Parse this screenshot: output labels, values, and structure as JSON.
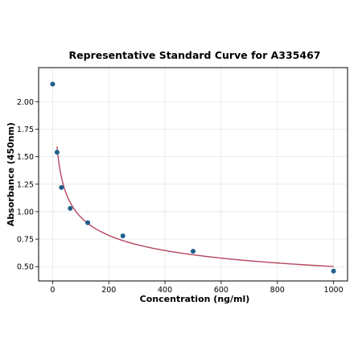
{
  "chart_data": {
    "type": "scatter",
    "title": "Representative Standard Curve for A335467",
    "xlabel": "Concentration (ng/ml)",
    "ylabel": "Absorbance (450nm)",
    "xlim": [
      -50,
      1050
    ],
    "ylim": [
      0.37,
      2.31
    ],
    "x_ticks": [
      0,
      200,
      400,
      600,
      800,
      1000
    ],
    "y_ticks": [
      0.5,
      0.75,
      1.0,
      1.25,
      1.5,
      1.75,
      2.0
    ],
    "x_tick_labels": [
      "0",
      "200",
      "400",
      "600",
      "800",
      "1000"
    ],
    "y_tick_labels": [
      "0.50",
      "0.75",
      "1.00",
      "1.25",
      "1.50",
      "1.75",
      "2.00"
    ],
    "grid": true,
    "legend": "none",
    "series": [
      {
        "type": "scatter",
        "color": "#1f5f8b",
        "x": [
          0,
          15.6,
          31.2,
          62.5,
          125,
          250,
          500,
          1000
        ],
        "y": [
          2.16,
          1.54,
          1.22,
          1.03,
          0.9,
          0.78,
          0.64,
          0.46
        ]
      },
      {
        "type": "line",
        "color": "#b5475f",
        "fit": "power",
        "x_range": [
          15.6,
          1000
        ],
        "a": 3.42,
        "b": -0.278
      }
    ]
  }
}
